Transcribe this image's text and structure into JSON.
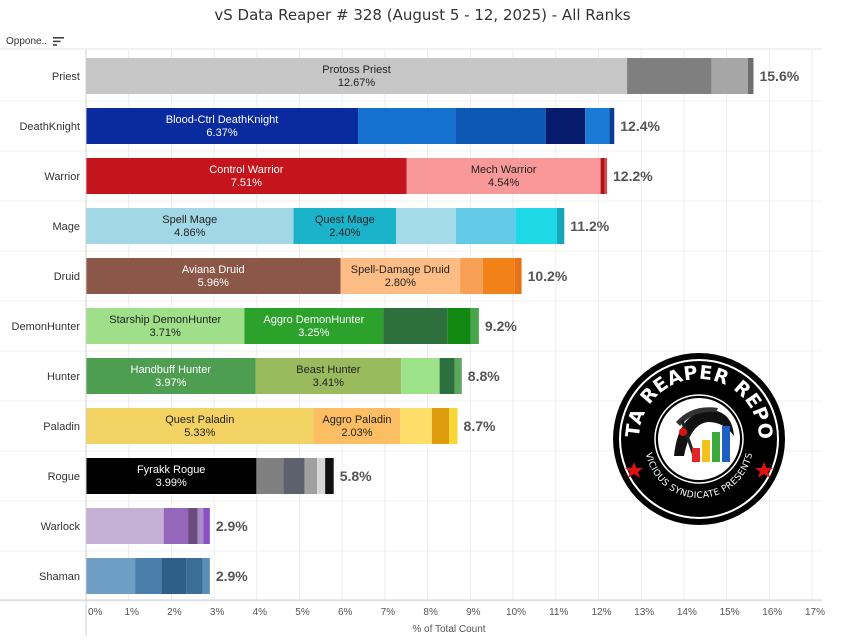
{
  "title": "vS Data Reaper # 328 (August 5 - 12, 2025) - All Ranks",
  "header": {
    "label": "Oppone..",
    "sort_icon": "sort-icon"
  },
  "logo": {
    "text_top": "DATA REAPER REPORT",
    "text_bottom": "VICIOUS SYNDICATE PRESENTS",
    "icon": "reaper-bar-chart-icon"
  },
  "chart_data": {
    "type": "bar",
    "orientation": "horizontal",
    "stacked": true,
    "xlabel": "% of Total Count",
    "xlim": [
      0,
      17
    ],
    "xticks": [
      "0%",
      "1%",
      "2%",
      "3%",
      "4%",
      "5%",
      "6%",
      "7%",
      "8%",
      "9%",
      "10%",
      "11%",
      "12%",
      "13%",
      "14%",
      "15%",
      "16%",
      "17%"
    ],
    "grid": true,
    "categories": [
      {
        "name": "Priest",
        "total_label": "15.6%",
        "segments": [
          {
            "value": 12.67,
            "color": "#c6c6c6",
            "label": "Protoss Priest",
            "value_label": "12.67%",
            "text_color": "#222222"
          },
          {
            "value": 1.98,
            "color": "#7f7f7f"
          },
          {
            "value": 0.85,
            "color": "#a6a6a6"
          },
          {
            "value": 0.13,
            "color": "#6e6e6e"
          }
        ]
      },
      {
        "name": "DeathKnight",
        "total_label": "12.4%",
        "segments": [
          {
            "value": 6.37,
            "color": "#0a2a9f",
            "label": "Blood-Ctrl DeathKnight",
            "value_label": "6.37%",
            "text_color": "#ffffff"
          },
          {
            "value": 2.28,
            "color": "#1571d0"
          },
          {
            "value": 2.12,
            "color": "#0c58b3"
          },
          {
            "value": 0.92,
            "color": "#061b6b"
          },
          {
            "value": 0.57,
            "color": "#1a7bd6"
          },
          {
            "value": 0.11,
            "color": "#0a3d8f"
          }
        ]
      },
      {
        "name": "Warrior",
        "total_label": "12.2%",
        "segments": [
          {
            "value": 7.51,
            "color": "#c5141b",
            "label": "Control Warrior",
            "value_label": "7.51%",
            "text_color": "#ffffff"
          },
          {
            "value": 4.54,
            "color": "#f89898",
            "label": "Mech Warrior",
            "value_label": "4.54%",
            "text_color": "#222222"
          },
          {
            "value": 0.09,
            "color": "#b01218"
          },
          {
            "value": 0.06,
            "color": "#e04848"
          }
        ]
      },
      {
        "name": "Mage",
        "total_label": "11.2%",
        "segments": [
          {
            "value": 4.86,
            "color": "#a2d8e6",
            "label": "Spell Mage",
            "value_label": "4.86%",
            "text_color": "#222222"
          },
          {
            "value": 2.4,
            "color": "#1ab3c9",
            "label": "Quest Mage",
            "value_label": "2.40%",
            "text_color": "#222222"
          },
          {
            "value": 1.4,
            "color": "#a3dbe8"
          },
          {
            "value": 1.4,
            "color": "#62cae6"
          },
          {
            "value": 0.97,
            "color": "#1ed8e6"
          },
          {
            "value": 0.17,
            "color": "#16a6ba"
          }
        ]
      },
      {
        "name": "Druid",
        "total_label": "10.2%",
        "segments": [
          {
            "value": 5.96,
            "color": "#8b5748",
            "label": "Aviana Druid",
            "value_label": "5.96%",
            "text_color": "#ffffff"
          },
          {
            "value": 2.8,
            "color": "#fdbd85",
            "label": "Spell-Damage Druid",
            "value_label": "2.80%",
            "text_color": "#222222"
          },
          {
            "value": 0.53,
            "color": "#f7a055"
          },
          {
            "value": 0.75,
            "color": "#f28118"
          },
          {
            "value": 0.16,
            "color": "#e8741a"
          }
        ]
      },
      {
        "name": "DemonHunter",
        "total_label": "9.2%",
        "segments": [
          {
            "value": 3.71,
            "color": "#9fdf8a",
            "label": "Starship DemonHunter",
            "value_label": "3.71%",
            "text_color": "#222222"
          },
          {
            "value": 3.25,
            "color": "#2ca12c",
            "label": "Aggro DemonHunter",
            "value_label": "3.25%",
            "text_color": "#ffffff"
          },
          {
            "value": 1.5,
            "color": "#2e6f3e"
          },
          {
            "value": 0.55,
            "color": "#128812"
          },
          {
            "value": 0.19,
            "color": "#4aa54a"
          }
        ]
      },
      {
        "name": "Hunter",
        "total_label": "8.8%",
        "segments": [
          {
            "value": 3.97,
            "color": "#4e9e52",
            "label": "Handbuff Hunter",
            "value_label": "3.97%",
            "text_color": "#ffffff"
          },
          {
            "value": 3.41,
            "color": "#98bb5e",
            "label": "Beast Hunter",
            "value_label": "3.41%",
            "text_color": "#222222"
          },
          {
            "value": 0.9,
            "color": "#9ee28a"
          },
          {
            "value": 0.35,
            "color": "#2e6f3e"
          },
          {
            "value": 0.17,
            "color": "#5ea85e"
          }
        ]
      },
      {
        "name": "Paladin",
        "total_label": "8.7%",
        "segments": [
          {
            "value": 5.33,
            "color": "#f3d264",
            "label": "Quest Paladin",
            "value_label": "5.33%",
            "text_color": "#222222"
          },
          {
            "value": 2.03,
            "color": "#fdbd62",
            "label": "Aggro Paladin",
            "value_label": "2.03%",
            "text_color": "#222222"
          },
          {
            "value": 0.74,
            "color": "#fede68"
          },
          {
            "value": 0.4,
            "color": "#dc9c0d"
          },
          {
            "value": 0.2,
            "color": "#f9d638"
          }
        ]
      },
      {
        "name": "Rogue",
        "total_label": "5.8%",
        "segments": [
          {
            "value": 3.99,
            "color": "#000000",
            "label": "Fyrakk Rogue",
            "value_label": "3.99%",
            "text_color": "#ffffff"
          },
          {
            "value": 0.63,
            "color": "#7f7f7f"
          },
          {
            "value": 0.5,
            "color": "#5d616e"
          },
          {
            "value": 0.29,
            "color": "#a0a0a0"
          },
          {
            "value": 0.19,
            "color": "#d6d6d6"
          },
          {
            "value": 0.2,
            "color": "#111111"
          }
        ]
      },
      {
        "name": "Warlock",
        "total_label": "2.9%",
        "segments": [
          {
            "value": 1.82,
            "color": "#c5b0d5"
          },
          {
            "value": 0.57,
            "color": "#9467bd"
          },
          {
            "value": 0.22,
            "color": "#6b4c80"
          },
          {
            "value": 0.14,
            "color": "#a98bc8"
          },
          {
            "value": 0.15,
            "color": "#8b4fc6"
          }
        ]
      },
      {
        "name": "Shaman",
        "total_label": "2.9%",
        "segments": [
          {
            "value": 1.15,
            "color": "#6e9ec4"
          },
          {
            "value": 0.62,
            "color": "#4a7eab"
          },
          {
            "value": 0.58,
            "color": "#2e5f8a"
          },
          {
            "value": 0.38,
            "color": "#3a6e96"
          },
          {
            "value": 0.17,
            "color": "#5a8eb8"
          }
        ]
      }
    ]
  }
}
